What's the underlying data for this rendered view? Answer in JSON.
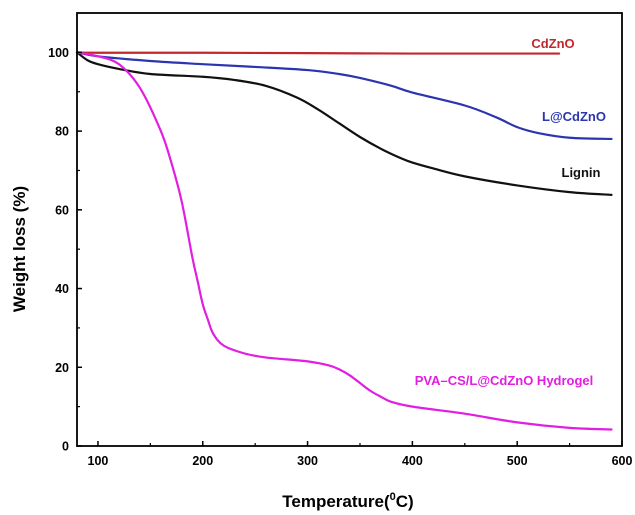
{
  "chart_data": {
    "type": "line",
    "title": "",
    "xlabel": "Temperature(",
    "xlabel_sup": "0",
    "xlabel_unit": "C)",
    "ylabel": "Weight loss (%)",
    "xlim": [
      80,
      600
    ],
    "ylim": [
      0,
      110
    ],
    "x_ticks": [
      100,
      200,
      300,
      400,
      500,
      600
    ],
    "y_ticks": [
      0,
      20,
      40,
      60,
      80,
      100
    ],
    "grid": false,
    "legend": "labels placed next to curves",
    "series": [
      {
        "name": "CdZnO",
        "color": "#c0282d",
        "x": [
          80,
          100,
          200,
          300,
          400,
          500,
          540
        ],
        "y": [
          100,
          99.9,
          99.9,
          99.8,
          99.7,
          99.7,
          99.7
        ]
      },
      {
        "name": "L@CdZnO",
        "color": "#2b35b0",
        "x": [
          80,
          100,
          150,
          200,
          250,
          300,
          330,
          350,
          380,
          400,
          450,
          480,
          500,
          520,
          550,
          590
        ],
        "y": [
          100,
          99,
          97.8,
          97,
          96.3,
          95.5,
          94.5,
          93.5,
          91.5,
          89.8,
          86.5,
          83.5,
          81,
          79.5,
          78.3,
          78
        ]
      },
      {
        "name": "Lignin",
        "color": "#111111",
        "x": [
          80,
          90,
          100,
          120,
          150,
          200,
          230,
          260,
          290,
          310,
          330,
          350,
          370,
          390,
          400,
          420,
          450,
          500,
          550,
          590
        ],
        "y": [
          100,
          98,
          97,
          95.8,
          94.5,
          93.8,
          93,
          91.5,
          88.5,
          85.5,
          82,
          78.5,
          75.5,
          73,
          72,
          70.5,
          68.5,
          66.2,
          64.5,
          63.8
        ]
      },
      {
        "name": "PVA–CS/L@CdZnO Hydrogel",
        "color": "#e11ee1",
        "x": [
          80,
          100,
          120,
          140,
          160,
          170,
          180,
          190,
          195,
          200,
          205,
          210,
          220,
          240,
          260,
          280,
          300,
          320,
          330,
          340,
          350,
          360,
          370,
          380,
          400,
          450,
          500,
          550,
          590
        ],
        "y": [
          100,
          99,
          97,
          91,
          80,
          72,
          62,
          48,
          42,
          36,
          32,
          28.5,
          25.5,
          23.5,
          22.5,
          22,
          21.5,
          20.5,
          19.5,
          18,
          16,
          14,
          12.5,
          11.2,
          10,
          8.2,
          6,
          4.6,
          4.2
        ]
      }
    ]
  }
}
